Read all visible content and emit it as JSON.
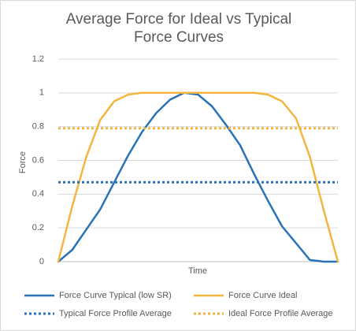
{
  "chart_data": {
    "type": "line",
    "title": "Average Force for Ideal vs Typical Force Curves",
    "x_label": "Time",
    "y_label": "Force",
    "categories": [
      null,
      null,
      null,
      null,
      null,
      null,
      null,
      null,
      null,
      null,
      null,
      null,
      null,
      null,
      null,
      null,
      null,
      null,
      null,
      null,
      null
    ],
    "series": [
      {
        "name": "Force Curve Typical (low SR)",
        "color": "#2872b5",
        "dashed": false,
        "values": [
          0,
          0.07,
          0.19,
          0.31,
          0.47,
          0.63,
          0.77,
          0.88,
          0.96,
          1.0,
          0.99,
          0.92,
          0.81,
          0.69,
          0.52,
          0.36,
          0.21,
          0.11,
          0.01,
          0.0,
          0.0
        ]
      },
      {
        "name": "Force Curve Ideal",
        "color": "#f4b53f",
        "dashed": false,
        "values": [
          0,
          0.33,
          0.62,
          0.84,
          0.95,
          0.99,
          1.0,
          1.0,
          1.0,
          1.0,
          1.0,
          1.0,
          1.0,
          1.0,
          1.0,
          0.99,
          0.95,
          0.85,
          0.62,
          0.3,
          0
        ]
      },
      {
        "name": "Typical Force Profile Average",
        "color": "#2872b5",
        "dashed": true,
        "values": [
          0.47,
          0.47,
          0.47,
          0.47,
          0.47,
          0.47,
          0.47,
          0.47,
          0.47,
          0.47,
          0.47,
          0.47,
          0.47,
          0.47,
          0.47,
          0.47,
          0.47,
          0.47,
          0.47,
          0.47,
          0.47
        ]
      },
      {
        "name": "Ideal Force Profile Average",
        "color": "#f4b53f",
        "dashed": true,
        "values": [
          0.79,
          0.79,
          0.79,
          0.79,
          0.79,
          0.79,
          0.79,
          0.79,
          0.79,
          0.79,
          0.79,
          0.79,
          0.79,
          0.79,
          0.79,
          0.79,
          0.79,
          0.79,
          0.79,
          0.79,
          0.79
        ]
      }
    ],
    "ylim": [
      0,
      1.2
    ],
    "yticks": [
      0,
      0.2,
      0.4,
      0.6,
      0.8,
      1,
      1.2
    ],
    "grid": true,
    "legend": "bottom"
  }
}
